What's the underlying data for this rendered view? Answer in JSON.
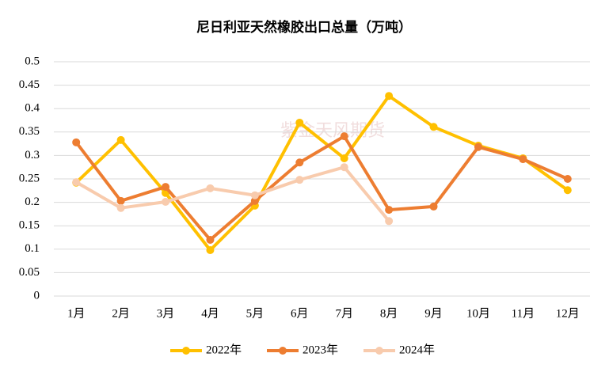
{
  "chart_data": {
    "type": "line",
    "title": "尼日利亚天然橡胶出口总量（万吨）",
    "watermark": "紫金天风期货",
    "categories": [
      "1月",
      "2月",
      "3月",
      "4月",
      "5月",
      "6月",
      "7月",
      "8月",
      "9月",
      "10月",
      "11月",
      "12月"
    ],
    "series": [
      {
        "name": "2022年",
        "color": "#FFC000",
        "values": [
          0.242,
          0.333,
          0.22,
          0.098,
          0.193,
          0.37,
          0.294,
          0.427,
          0.361,
          0.321,
          0.294,
          0.226
        ]
      },
      {
        "name": "2023年",
        "color": "#ED7D31",
        "values": [
          0.328,
          0.203,
          0.233,
          0.12,
          0.203,
          0.285,
          0.341,
          0.184,
          0.191,
          0.318,
          0.292,
          0.25
        ]
      },
      {
        "name": "2024年",
        "color": "#F8CBAD",
        "values": [
          0.243,
          0.188,
          0.201,
          0.23,
          0.215,
          0.248,
          0.275,
          0.16,
          null,
          null,
          null,
          null
        ]
      }
    ],
    "ylim": [
      0,
      0.5
    ],
    "yticks": [
      0,
      0.05,
      0.1,
      0.15,
      0.2,
      0.25,
      0.3,
      0.35,
      0.4,
      0.45,
      0.5
    ],
    "grid": true,
    "legend": "bottom"
  }
}
